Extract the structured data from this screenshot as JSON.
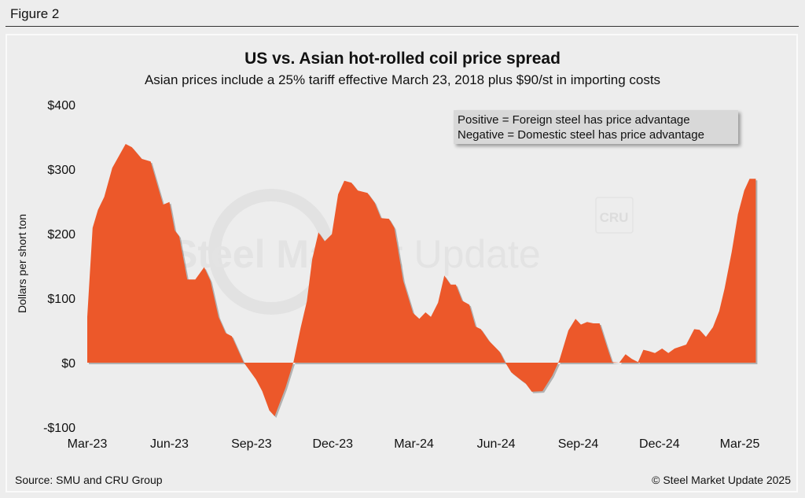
{
  "figure_label": "Figure 2",
  "source": "Source: SMU and CRU Group",
  "copyright": "© Steel Market Update 2025",
  "watermark": {
    "text": "Steel Market Update",
    "badge": "CRU"
  },
  "chart_data": {
    "type": "area",
    "title": "US vs. Asian hot-rolled coil price spread",
    "subtitle": "Asian prices include a 25% tariff effective March 23, 2018 plus $90/st in importing costs",
    "xlabel": "",
    "ylabel": "Dollars per short ton",
    "ylim": [
      -100,
      400
    ],
    "yticks": [
      -100,
      0,
      100,
      200,
      300,
      400
    ],
    "ytick_labels": [
      "-$100",
      "$0",
      "$100",
      "$200",
      "$300",
      "$400"
    ],
    "xticks": [
      "2023-03-01",
      "2023-06-01",
      "2023-09-01",
      "2023-12-01",
      "2024-03-01",
      "2024-06-01",
      "2024-09-01",
      "2024-12-01",
      "2025-03-01"
    ],
    "xtick_labels": [
      "Mar-23",
      "Jun-23",
      "Sep-23",
      "Dec-23",
      "Mar-24",
      "Jun-24",
      "Sep-24",
      "Dec-24",
      "Mar-25"
    ],
    "grid": false,
    "legend": [
      "Positive = Foreign steel has price advantage",
      "Negative = Domestic steel has price advantage"
    ],
    "legend_position": "top-right",
    "color": "#ec582a",
    "x": [
      "2023-03-01",
      "2023-03-07",
      "2023-03-13",
      "2023-03-20",
      "2023-03-29",
      "2023-04-13",
      "2023-04-20",
      "2023-05-01",
      "2023-05-11",
      "2023-05-25",
      "2023-06-01",
      "2023-06-07",
      "2023-06-12",
      "2023-06-21",
      "2023-06-30",
      "2023-07-10",
      "2023-07-17",
      "2023-07-26",
      "2023-08-03",
      "2023-08-10",
      "2023-08-23",
      "2023-09-06",
      "2023-09-13",
      "2023-09-21",
      "2023-09-27",
      "2023-10-09",
      "2023-10-18",
      "2023-10-26",
      "2023-11-02",
      "2023-11-08",
      "2023-11-15",
      "2023-11-22",
      "2023-11-30",
      "2023-12-07",
      "2023-12-14",
      "2023-12-22",
      "2023-12-29",
      "2024-01-09",
      "2024-01-17",
      "2024-01-24",
      "2024-02-02",
      "2024-02-08",
      "2024-02-18",
      "2024-02-29",
      "2024-03-07",
      "2024-03-14",
      "2024-03-20",
      "2024-03-28",
      "2024-04-04",
      "2024-04-11",
      "2024-04-17",
      "2024-04-24",
      "2024-05-02",
      "2024-05-09",
      "2024-05-15",
      "2024-05-24",
      "2024-06-05",
      "2024-06-11",
      "2024-06-18",
      "2024-06-29",
      "2024-07-04",
      "2024-07-11",
      "2024-07-23",
      "2024-08-03",
      "2024-08-11",
      "2024-08-21",
      "2024-08-29",
      "2024-09-04",
      "2024-09-11",
      "2024-09-18",
      "2024-09-25",
      "2024-10-03",
      "2024-10-09",
      "2024-10-17",
      "2024-10-24",
      "2024-10-31",
      "2024-11-07",
      "2024-11-13",
      "2024-11-19",
      "2024-11-26",
      "2024-12-04",
      "2024-12-11",
      "2024-12-18",
      "2024-12-31",
      "2025-01-09",
      "2025-01-15",
      "2025-01-22",
      "2025-01-30",
      "2025-02-06",
      "2025-02-12",
      "2025-02-20",
      "2025-02-27",
      "2025-03-06",
      "2025-03-12",
      "2025-03-19"
    ],
    "values": [
      71,
      209,
      237,
      257,
      302,
      339,
      334,
      316,
      312,
      245,
      249,
      205,
      196,
      129,
      129,
      148,
      127,
      71,
      46,
      41,
      1,
      -26,
      -44,
      -74,
      -83,
      -39,
      1,
      54,
      95,
      160,
      202,
      188,
      199,
      261,
      282,
      279,
      267,
      263,
      248,
      224,
      223,
      209,
      127,
      77,
      68,
      78,
      71,
      93,
      135,
      121,
      121,
      96,
      90,
      56,
      52,
      34,
      17,
      1,
      -15,
      -27,
      -32,
      -45,
      -44,
      -20,
      4,
      50,
      68,
      59,
      63,
      61,
      61,
      26,
      1,
      0,
      13,
      6,
      1,
      20,
      18,
      15,
      22,
      15,
      22,
      28,
      52,
      51,
      40,
      55,
      80,
      115,
      172,
      230,
      267,
      285,
      285
    ]
  }
}
